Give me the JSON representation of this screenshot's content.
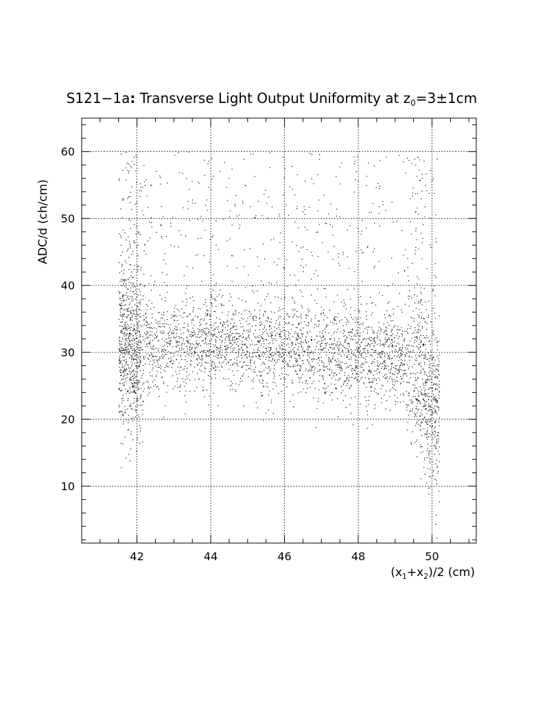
{
  "chart_data": {
    "type": "scatter",
    "title_parts": {
      "prefix": "S121−1a",
      "colon": ":",
      "text": " Transverse Light Output Uniformity at z",
      "sub": "0",
      "suffix": "=3±1cm"
    },
    "xlabel_parts": [
      "(x",
      "1",
      "+x",
      "2",
      ")/2 (cm)"
    ],
    "ylabel": "ADC/d (ch/cm)",
    "xlim": [
      40.5,
      51.2
    ],
    "ylim": [
      1.5,
      65
    ],
    "x_ticks": [
      "42",
      "44",
      "46",
      "48",
      "50"
    ],
    "y_ticks": [
      "10",
      "20",
      "30",
      "40",
      "50",
      "60"
    ],
    "grid": true,
    "marker_color": "#000000",
    "n_points": 4200,
    "profile": {
      "x_range": [
        41.5,
        50.2
      ],
      "y_core_mean": [
        [
          41.5,
          31
        ],
        [
          42.0,
          31
        ],
        [
          43.0,
          31.5
        ],
        [
          44.0,
          31.5
        ],
        [
          45.0,
          31
        ],
        [
          46.0,
          30.5
        ],
        [
          47.0,
          30
        ],
        [
          48.0,
          30
        ],
        [
          49.0,
          29.5
        ],
        [
          49.5,
          28
        ],
        [
          50.0,
          22
        ]
      ],
      "y_core_sigma": 3.5,
      "halo_fraction": 0.13,
      "halo_y_range": [
        35,
        60
      ]
    }
  }
}
